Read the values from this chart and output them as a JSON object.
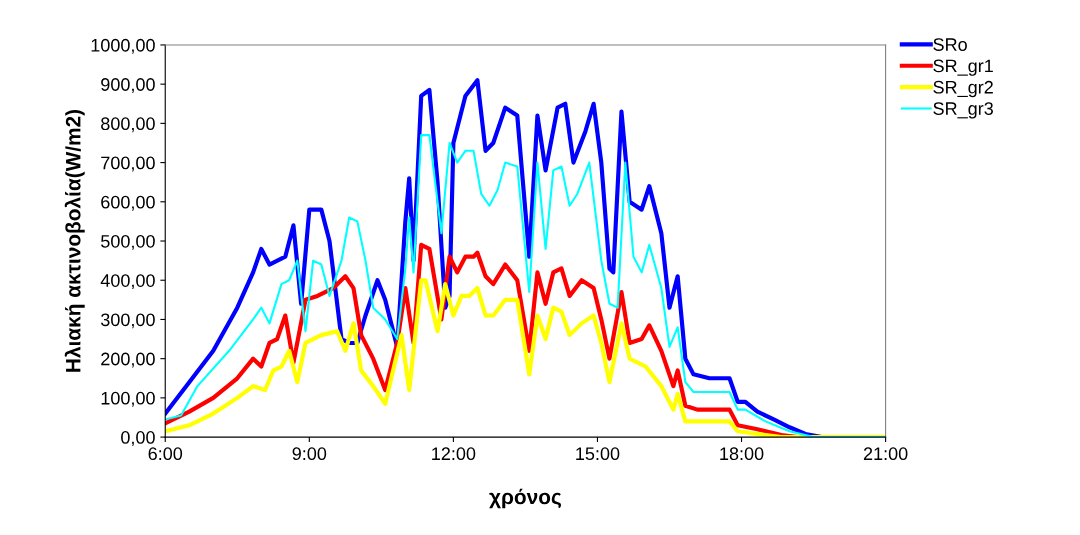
{
  "chart_data": {
    "type": "line",
    "xlabel": "χρόνος",
    "ylabel": "Ηλιακή ακτινοβολία(W/m2)",
    "xlim": [
      6,
      21
    ],
    "xticks": [
      {
        "value": 6,
        "label": "6:00"
      },
      {
        "value": 9,
        "label": "9:00"
      },
      {
        "value": 12,
        "label": "12:00"
      },
      {
        "value": 15,
        "label": "15:00"
      },
      {
        "value": 18,
        "label": "18:00"
      },
      {
        "value": 21,
        "label": "21:00"
      }
    ],
    "ylim": [
      0,
      1000
    ],
    "yticks": [
      {
        "value": 0,
        "label": "0,00"
      },
      {
        "value": 100,
        "label": "100,00"
      },
      {
        "value": 200,
        "label": "200,00"
      },
      {
        "value": 300,
        "label": "300,00"
      },
      {
        "value": 400,
        "label": "400,00"
      },
      {
        "value": 500,
        "label": "500,00"
      },
      {
        "value": 600,
        "label": "600,00"
      },
      {
        "value": 700,
        "label": "700,00"
      },
      {
        "value": 800,
        "label": "800,00"
      },
      {
        "value": 900,
        "label": "900,00"
      },
      {
        "value": 1000,
        "label": "1000,00"
      }
    ],
    "grid": false,
    "legend": "top right",
    "marker": "none",
    "line_style": "solid",
    "series": [
      {
        "name": "SRo",
        "color": "#0000ff",
        "x": [
          6.0,
          6.5,
          7.0,
          7.5,
          7.83,
          8.0,
          8.17,
          8.5,
          8.67,
          8.83,
          9.0,
          9.25,
          9.42,
          9.67,
          9.83,
          10.0,
          10.17,
          10.42,
          10.58,
          10.83,
          11.0,
          11.08,
          11.17,
          11.33,
          11.5,
          11.67,
          11.83,
          11.92,
          12.0,
          12.25,
          12.5,
          12.67,
          12.83,
          13.08,
          13.33,
          13.58,
          13.75,
          13.92,
          14.17,
          14.33,
          14.5,
          14.75,
          14.92,
          15.08,
          15.25,
          15.33,
          15.5,
          15.67,
          15.92,
          16.08,
          16.33,
          16.5,
          16.67,
          16.83,
          17.0,
          17.33,
          17.75,
          17.92,
          18.08,
          18.33,
          18.67,
          19.0,
          19.33,
          19.67,
          21.0
        ],
        "values": [
          60,
          140,
          220,
          330,
          420,
          480,
          440,
          460,
          540,
          340,
          580,
          580,
          500,
          250,
          240,
          240,
          310,
          400,
          350,
          230,
          550,
          660,
          450,
          870,
          885,
          650,
          330,
          360,
          750,
          870,
          910,
          730,
          750,
          840,
          820,
          460,
          820,
          680,
          840,
          850,
          700,
          780,
          850,
          700,
          430,
          420,
          830,
          600,
          580,
          640,
          520,
          330,
          410,
          200,
          160,
          150,
          150,
          90,
          90,
          65,
          45,
          25,
          8,
          0,
          0
        ]
      },
      {
        "name": "SR_gr1",
        "color": "#ff0000",
        "x": [
          6.0,
          6.5,
          7.0,
          7.5,
          7.83,
          8.0,
          8.17,
          8.33,
          8.5,
          8.67,
          8.92,
          9.17,
          9.5,
          9.75,
          9.92,
          10.08,
          10.33,
          10.58,
          10.83,
          11.0,
          11.17,
          11.33,
          11.5,
          11.75,
          11.92,
          12.08,
          12.25,
          12.42,
          12.5,
          12.67,
          12.83,
          13.08,
          13.33,
          13.58,
          13.75,
          13.92,
          14.08,
          14.25,
          14.42,
          14.67,
          14.92,
          15.08,
          15.25,
          15.5,
          15.67,
          15.92,
          16.08,
          16.33,
          16.58,
          16.67,
          16.83,
          17.08,
          17.75,
          17.92,
          18.33,
          18.83,
          19.17,
          21.0
        ],
        "values": [
          35,
          65,
          100,
          150,
          200,
          180,
          240,
          250,
          310,
          190,
          350,
          360,
          380,
          410,
          380,
          260,
          200,
          120,
          240,
          380,
          240,
          490,
          480,
          300,
          460,
          420,
          460,
          460,
          470,
          410,
          390,
          440,
          400,
          220,
          420,
          340,
          420,
          430,
          360,
          400,
          380,
          300,
          200,
          370,
          240,
          250,
          285,
          220,
          130,
          170,
          80,
          70,
          70,
          30,
          20,
          5,
          0,
          0
        ]
      },
      {
        "name": "SR_gr2",
        "color": "#ffff00",
        "x": [
          6.0,
          6.5,
          7.0,
          7.5,
          7.83,
          8.08,
          8.25,
          8.42,
          8.58,
          8.75,
          8.92,
          9.25,
          9.58,
          9.75,
          9.92,
          10.08,
          10.33,
          10.58,
          10.92,
          11.08,
          11.33,
          11.42,
          11.67,
          11.83,
          12.0,
          12.17,
          12.33,
          12.5,
          12.67,
          12.83,
          13.08,
          13.33,
          13.58,
          13.75,
          13.92,
          14.08,
          14.25,
          14.42,
          14.67,
          14.92,
          15.08,
          15.25,
          15.5,
          15.67,
          16.0,
          16.33,
          16.58,
          16.67,
          16.83,
          17.0,
          17.75,
          17.92,
          18.5,
          18.83,
          21.0
        ],
        "values": [
          15,
          30,
          60,
          100,
          130,
          120,
          170,
          180,
          220,
          140,
          240,
          260,
          270,
          220,
          290,
          170,
          130,
          85,
          260,
          120,
          400,
          400,
          270,
          390,
          310,
          360,
          360,
          380,
          310,
          310,
          350,
          350,
          160,
          310,
          250,
          330,
          320,
          260,
          290,
          310,
          240,
          140,
          290,
          200,
          180,
          130,
          70,
          110,
          40,
          40,
          40,
          15,
          5,
          0,
          0
        ]
      },
      {
        "name": "SR_gr3",
        "color": "#00ffff",
        "x": [
          6.0,
          6.33,
          6.67,
          7.33,
          7.83,
          8.0,
          8.17,
          8.42,
          8.58,
          8.75,
          8.92,
          9.08,
          9.25,
          9.42,
          9.67,
          9.83,
          10.0,
          10.17,
          10.33,
          10.58,
          10.83,
          11.0,
          11.08,
          11.17,
          11.33,
          11.5,
          11.75,
          11.92,
          12.08,
          12.25,
          12.42,
          12.58,
          12.75,
          12.92,
          13.08,
          13.33,
          13.58,
          13.75,
          13.92,
          14.08,
          14.25,
          14.42,
          14.58,
          14.83,
          15.08,
          15.25,
          15.42,
          15.58,
          15.75,
          15.92,
          16.08,
          16.33,
          16.5,
          16.67,
          16.83,
          17.0,
          17.75,
          17.92,
          18.08,
          18.5,
          19.0,
          19.5,
          21.0
        ],
        "values": [
          45,
          55,
          130,
          220,
          300,
          330,
          290,
          390,
          400,
          450,
          270,
          450,
          440,
          360,
          450,
          560,
          550,
          450,
          330,
          300,
          250,
          430,
          560,
          420,
          770,
          770,
          520,
          750,
          700,
          730,
          730,
          620,
          590,
          630,
          700,
          690,
          370,
          700,
          480,
          680,
          690,
          590,
          620,
          700,
          450,
          340,
          330,
          700,
          460,
          420,
          490,
          380,
          230,
          280,
          140,
          115,
          115,
          70,
          70,
          40,
          15,
          0,
          0
        ]
      }
    ]
  }
}
